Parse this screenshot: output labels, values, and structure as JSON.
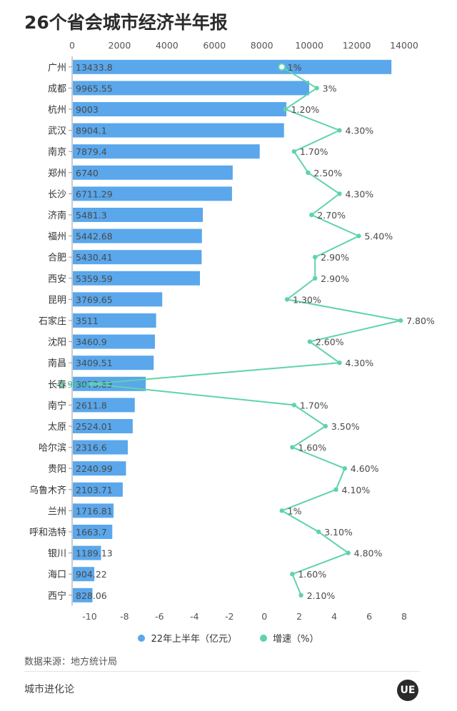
{
  "title": "26个省会城市经济半年报",
  "chart_data": {
    "type": "bar",
    "title": "26个省会城市经济半年报",
    "categories": [
      "广州",
      "成都",
      "杭州",
      "武汉",
      "南京",
      "郑州",
      "长沙",
      "济南",
      "福州",
      "合肥",
      "西安",
      "昆明",
      "石家庄",
      "沈阳",
      "南昌",
      "长春",
      "南宁",
      "太原",
      "哈尔滨",
      "贵阳",
      "乌鲁木齐",
      "兰州",
      "呼和浩特",
      "银川",
      "海口",
      "西宁"
    ],
    "series": [
      {
        "name": "22年上半年（亿元）",
        "type": "bar",
        "color": "#5aa7ec",
        "axis": "top",
        "values": [
          13433.8,
          9965.55,
          9003,
          8904.1,
          7879.4,
          6740,
          6711.29,
          5481.3,
          5442.68,
          5430.41,
          5359.59,
          3769.65,
          3511,
          3460.9,
          3409.51,
          3073.83,
          2611.8,
          2524.01,
          2316.6,
          2240.99,
          2103.71,
          1716.81,
          1663.7,
          1189.13,
          904.22,
          828.06
        ],
        "labels": [
          "13433.8",
          "9965.55",
          "9003",
          "8904.1",
          "7879.4",
          "6740",
          "6711.29",
          "5481.3",
          "5442.68",
          "5430.41",
          "5359.59",
          "3769.65",
          "3511",
          "3460.9",
          "3409.51",
          "3073.83",
          "2611.8",
          "2524.01",
          "2316.6",
          "2240.99",
          "2103.71",
          "1716.81",
          "1663.7",
          "1189.13",
          "904.22",
          "828.06"
        ]
      },
      {
        "name": "增速（%）",
        "type": "line",
        "color": "#5fd4a8",
        "axis": "bottom",
        "values": [
          1,
          3,
          1.2,
          4.3,
          1.7,
          2.5,
          4.3,
          2.7,
          5.4,
          2.9,
          2.9,
          1.3,
          7.8,
          2.6,
          4.3,
          -9.9,
          1.7,
          3.5,
          1.6,
          4.6,
          4.1,
          1,
          3.1,
          4.8,
          1.6,
          2.1
        ],
        "labels": [
          "1%",
          "3%",
          "1.20%",
          "4.30%",
          "1.70%",
          "2.50%",
          "4.30%",
          "2.70%",
          "5.40%",
          "2.90%",
          "2.90%",
          "1.30%",
          "7.80%",
          "2.60%",
          "4.30%",
          "-9.90%",
          "1.70%",
          "3.50%",
          "1.60%",
          "4.60%",
          "4.10%",
          "1%",
          "3.10%",
          "4.80%",
          "1.60%",
          "2.10%"
        ]
      }
    ],
    "top_axis": {
      "range": [
        0,
        14000
      ],
      "ticks": [
        "0",
        "2000",
        "4000",
        "6000",
        "8000",
        "10000",
        "12000",
        "14000"
      ]
    },
    "bottom_axis": {
      "range": [
        -11,
        8
      ],
      "ticks": [
        "-10",
        "-8",
        "-6",
        "-4",
        "-2",
        "0",
        "2",
        "4",
        "6",
        "8"
      ]
    },
    "legend_position": "bottom",
    "grid": false
  },
  "legend": {
    "bar_label": "22年上半年（亿元）",
    "line_label": "增速（%）",
    "bar_color": "#5aa7ec",
    "line_color": "#5fd4a8"
  },
  "footer": {
    "source": "数据来源：地方统计局",
    "brand": "城市进化论",
    "logo_text": "UE"
  }
}
